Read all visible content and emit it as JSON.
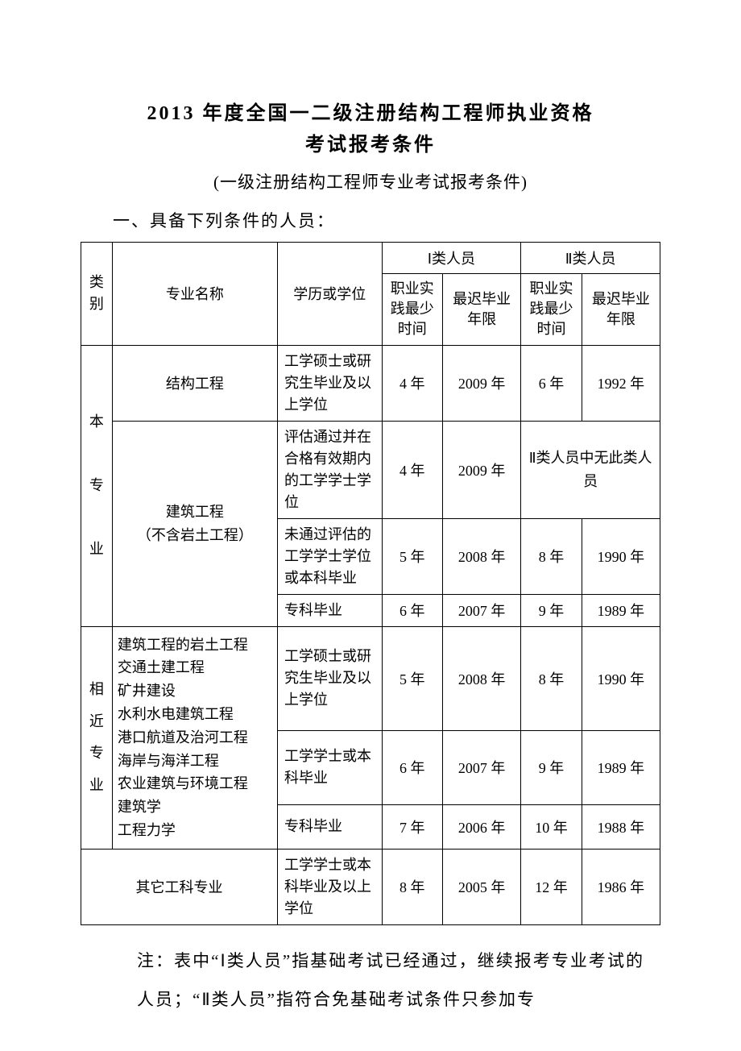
{
  "title_line1": "2013 年度全国一二级注册结构工程师执业资格",
  "title_line2": "考试报考条件",
  "subtitle": "(一级注册结构工程师专业考试报考条件)",
  "section_header": "一、具备下列条件的人员：",
  "table": {
    "headers": {
      "category": "类别",
      "major": "专业名称",
      "degree": "学历或学位",
      "class1": "Ⅰ类人员",
      "class2": "Ⅱ类人员",
      "min_practice": "职业实践最少时间",
      "latest_grad": "最迟毕业年限"
    },
    "cat1": "本\n\n专\n\n业",
    "cat2": "相\n近\n专\n业",
    "major1": "结构工程",
    "major2": "建筑工程\n（不含岩土工程）",
    "major3_lines": [
      "建筑工程的岩土工程",
      "交通土建工程",
      "矿井建设",
      "水利水电建筑工程",
      "港口航道及治河工程",
      "海岸与海洋工程",
      "农业建筑与环境工程",
      "建筑学",
      "工程力学"
    ],
    "major4": "其它工科专业",
    "degrees": {
      "d1": "工学硕士或研究生毕业及以上学位",
      "d2": "评估通过并在合格有效期内的工学学士学位",
      "d3": "未通过评估的工学学士学位或本科毕业",
      "d4": "专科毕业",
      "d5": "工学硕士或研究生毕业及以上学位",
      "d6": "工学学士或本科毕业",
      "d7": "专科毕业",
      "d8": "工学学士或本科毕业及以上学位"
    },
    "rows": [
      {
        "p1": "4 年",
        "y1": "2009 年",
        "p2": "6 年",
        "y2": "1992 年"
      },
      {
        "p1": "4 年",
        "y1": "2009 年",
        "merged": "Ⅱ类人员中无此类人员"
      },
      {
        "p1": "5 年",
        "y1": "2008 年",
        "p2": "8 年",
        "y2": "1990 年"
      },
      {
        "p1": "6 年",
        "y1": "2007 年",
        "p2": "9 年",
        "y2": "1989 年"
      },
      {
        "p1": "5 年",
        "y1": "2008 年",
        "p2": "8 年",
        "y2": "1990 年"
      },
      {
        "p1": "6 年",
        "y1": "2007 年",
        "p2": "9 年",
        "y2": "1989 年"
      },
      {
        "p1": "7 年",
        "y1": "2006 年",
        "p2": "10 年",
        "y2": "1988 年"
      },
      {
        "p1": "8 年",
        "y1": "2005 年",
        "p2": "12 年",
        "y2": "1986 年"
      }
    ]
  },
  "note": "注：表中“Ⅰ类人员”指基础考试已经通过，继续报考专业考试的人员；“Ⅱ类人员”指符合免基础考试条件只参加专"
}
